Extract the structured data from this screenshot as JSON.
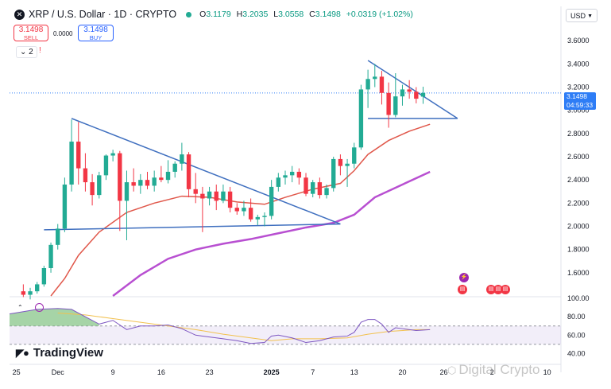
{
  "header": {
    "symbol_title": "XRP / U.S. Dollar · 1D · CRYPTO",
    "logo_glyph": "✕",
    "open_key": "O",
    "open": "3.1179",
    "high_key": "H",
    "high": "3.2035",
    "low_key": "L",
    "low": "3.0558",
    "close_key": "C",
    "close": "3.1498",
    "change": "+0.0319 (+1.02%)"
  },
  "trade": {
    "sell_price": "3.1498",
    "sell_label": "SELL",
    "spread": "0.0000",
    "buy_price": "3.1498",
    "buy_label": "BUY"
  },
  "indicators_toggle": "2",
  "currency_select": "USD",
  "last_price_tag": {
    "price": "3.1498",
    "countdown": "04:59:33"
  },
  "brand": "TradingView",
  "watermark": "Digital Crypto",
  "colors": {
    "up": "#22ab94",
    "down": "#f23645",
    "trendline": "#3f6fbf",
    "ma_fast": "#e0574a",
    "ma_slow": "#b84fd1",
    "rsi": "#7e57c2",
    "rsi_ma": "#f2c14e",
    "price_line": "#2e7df6",
    "volume_area": "#80c281"
  },
  "chart_data": {
    "type": "candlestick",
    "symbol": "XRP / U.S. Dollar",
    "interval": "1D",
    "ylim": [
      1.4,
      3.8
    ],
    "y_ticks": [
      "3.6000",
      "3.4000",
      "3.2000",
      "3.0000",
      "2.8000",
      "2.6000",
      "2.4000",
      "2.2000",
      "2.0000",
      "1.8000",
      "1.6000"
    ],
    "y_tick_values": [
      3.6,
      3.4,
      3.2,
      3.0,
      2.8,
      2.6,
      2.4,
      2.2,
      2.0,
      1.8,
      1.6
    ],
    "x_ticks": [
      {
        "label": "25",
        "day": -6,
        "bold": false
      },
      {
        "label": "Dec",
        "day": 0,
        "bold": false
      },
      {
        "label": "9",
        "day": 8,
        "bold": false
      },
      {
        "label": "16",
        "day": 15,
        "bold": false
      },
      {
        "label": "23",
        "day": 22,
        "bold": false
      },
      {
        "label": "2025",
        "day": 31,
        "bold": true
      },
      {
        "label": "7",
        "day": 37,
        "bold": false
      },
      {
        "label": "13",
        "day": 43,
        "bold": false
      },
      {
        "label": "20",
        "day": 50,
        "bold": false
      },
      {
        "label": "26",
        "day": 56,
        "bold": false
      },
      {
        "label": "2",
        "day": 63,
        "bold": false
      },
      {
        "label": "10",
        "day": 71,
        "bold": false
      }
    ],
    "x_day_range": [
      -7,
      73
    ],
    "candles": [
      {
        "day": -5,
        "o": 1.44,
        "h": 1.5,
        "l": 1.39,
        "c": 1.41
      },
      {
        "day": -4,
        "o": 1.41,
        "h": 1.47,
        "l": 1.37,
        "c": 1.44
      },
      {
        "day": -3,
        "o": 1.44,
        "h": 1.52,
        "l": 1.42,
        "c": 1.5
      },
      {
        "day": -2,
        "o": 1.5,
        "h": 1.66,
        "l": 1.48,
        "c": 1.64
      },
      {
        "day": -1,
        "o": 1.64,
        "h": 1.86,
        "l": 1.6,
        "c": 1.84
      },
      {
        "day": 0,
        "o": 1.84,
        "h": 2.02,
        "l": 1.8,
        "c": 1.98
      },
      {
        "day": 1,
        "o": 1.98,
        "h": 2.42,
        "l": 1.95,
        "c": 2.36
      },
      {
        "day": 2,
        "o": 2.36,
        "h": 2.92,
        "l": 2.3,
        "c": 2.73
      },
      {
        "day": 3,
        "o": 2.73,
        "h": 2.9,
        "l": 2.36,
        "c": 2.5
      },
      {
        "day": 4,
        "o": 2.5,
        "h": 2.63,
        "l": 2.3,
        "c": 2.38
      },
      {
        "day": 5,
        "o": 2.38,
        "h": 2.45,
        "l": 2.18,
        "c": 2.27
      },
      {
        "day": 6,
        "o": 2.27,
        "h": 2.47,
        "l": 2.24,
        "c": 2.44
      },
      {
        "day": 7,
        "o": 2.44,
        "h": 2.62,
        "l": 2.4,
        "c": 2.61
      },
      {
        "day": 8,
        "o": 2.61,
        "h": 2.66,
        "l": 2.56,
        "c": 2.63
      },
      {
        "day": 9,
        "o": 2.63,
        "h": 2.65,
        "l": 1.96,
        "c": 2.22
      },
      {
        "day": 10,
        "o": 2.22,
        "h": 2.48,
        "l": 1.88,
        "c": 2.38
      },
      {
        "day": 11,
        "o": 2.38,
        "h": 2.5,
        "l": 2.3,
        "c": 2.35
      },
      {
        "day": 12,
        "o": 2.35,
        "h": 2.45,
        "l": 2.28,
        "c": 2.4
      },
      {
        "day": 13,
        "o": 2.4,
        "h": 2.47,
        "l": 2.32,
        "c": 2.35
      },
      {
        "day": 14,
        "o": 2.35,
        "h": 2.48,
        "l": 2.3,
        "c": 2.42
      },
      {
        "day": 15,
        "o": 2.42,
        "h": 2.52,
        "l": 2.38,
        "c": 2.4
      },
      {
        "day": 16,
        "o": 2.4,
        "h": 2.57,
        "l": 2.37,
        "c": 2.47
      },
      {
        "day": 17,
        "o": 2.47,
        "h": 2.56,
        "l": 2.42,
        "c": 2.54
      },
      {
        "day": 18,
        "o": 2.54,
        "h": 2.72,
        "l": 2.48,
        "c": 2.62
      },
      {
        "day": 19,
        "o": 2.62,
        "h": 2.64,
        "l": 2.25,
        "c": 2.32
      },
      {
        "day": 20,
        "o": 2.32,
        "h": 2.46,
        "l": 2.2,
        "c": 2.28
      },
      {
        "day": 21,
        "o": 2.28,
        "h": 2.34,
        "l": 1.95,
        "c": 2.24
      },
      {
        "day": 22,
        "o": 2.24,
        "h": 2.34,
        "l": 2.18,
        "c": 2.3
      },
      {
        "day": 23,
        "o": 2.3,
        "h": 2.36,
        "l": 2.14,
        "c": 2.22
      },
      {
        "day": 24,
        "o": 2.22,
        "h": 2.36,
        "l": 2.2,
        "c": 2.3
      },
      {
        "day": 25,
        "o": 2.3,
        "h": 2.34,
        "l": 2.12,
        "c": 2.16
      },
      {
        "day": 26,
        "o": 2.16,
        "h": 2.2,
        "l": 2.1,
        "c": 2.13
      },
      {
        "day": 27,
        "o": 2.13,
        "h": 2.22,
        "l": 2.09,
        "c": 2.16
      },
      {
        "day": 28,
        "o": 2.16,
        "h": 2.24,
        "l": 2.04,
        "c": 2.06
      },
      {
        "day": 29,
        "o": 2.06,
        "h": 2.1,
        "l": 2.01,
        "c": 2.08
      },
      {
        "day": 30,
        "o": 2.08,
        "h": 2.12,
        "l": 2.0,
        "c": 2.09
      },
      {
        "day": 31,
        "o": 2.09,
        "h": 2.4,
        "l": 2.06,
        "c": 2.34
      },
      {
        "day": 32,
        "o": 2.34,
        "h": 2.46,
        "l": 2.3,
        "c": 2.42
      },
      {
        "day": 33,
        "o": 2.42,
        "h": 2.48,
        "l": 2.36,
        "c": 2.44
      },
      {
        "day": 34,
        "o": 2.44,
        "h": 2.52,
        "l": 2.38,
        "c": 2.47
      },
      {
        "day": 35,
        "o": 2.47,
        "h": 2.5,
        "l": 2.36,
        "c": 2.42
      },
      {
        "day": 36,
        "o": 2.42,
        "h": 2.46,
        "l": 2.26,
        "c": 2.28
      },
      {
        "day": 37,
        "o": 2.28,
        "h": 2.4,
        "l": 2.25,
        "c": 2.38
      },
      {
        "day": 38,
        "o": 2.38,
        "h": 2.42,
        "l": 2.24,
        "c": 2.27
      },
      {
        "day": 39,
        "o": 2.27,
        "h": 2.36,
        "l": 2.24,
        "c": 2.33
      },
      {
        "day": 40,
        "o": 2.33,
        "h": 2.6,
        "l": 2.3,
        "c": 2.58
      },
      {
        "day": 41,
        "o": 2.58,
        "h": 2.62,
        "l": 2.44,
        "c": 2.52
      },
      {
        "day": 42,
        "o": 2.52,
        "h": 2.58,
        "l": 2.34,
        "c": 2.54
      },
      {
        "day": 43,
        "o": 2.54,
        "h": 2.72,
        "l": 2.5,
        "c": 2.68
      },
      {
        "day": 44,
        "o": 2.68,
        "h": 3.22,
        "l": 2.66,
        "c": 3.18
      },
      {
        "day": 45,
        "o": 3.18,
        "h": 3.35,
        "l": 3.02,
        "c": 3.27
      },
      {
        "day": 46,
        "o": 3.27,
        "h": 3.4,
        "l": 3.2,
        "c": 3.29
      },
      {
        "day": 47,
        "o": 3.29,
        "h": 3.34,
        "l": 3.05,
        "c": 3.15
      },
      {
        "day": 48,
        "o": 3.15,
        "h": 3.24,
        "l": 2.85,
        "c": 2.96
      },
      {
        "day": 49,
        "o": 2.96,
        "h": 3.32,
        "l": 2.94,
        "c": 3.12
      },
      {
        "day": 50,
        "o": 3.12,
        "h": 3.22,
        "l": 3.04,
        "c": 3.18
      },
      {
        "day": 51,
        "o": 3.18,
        "h": 3.26,
        "l": 3.1,
        "c": 3.16
      },
      {
        "day": 52,
        "o": 3.16,
        "h": 3.2,
        "l": 3.06,
        "c": 3.1
      },
      {
        "day": 53,
        "o": 3.1179,
        "h": 3.2035,
        "l": 3.0558,
        "c": 3.1498
      }
    ],
    "ma_fast": [
      [
        -1,
        1.4
      ],
      [
        1,
        1.55
      ],
      [
        3,
        1.75
      ],
      [
        6,
        1.95
      ],
      [
        10,
        2.12
      ],
      [
        14,
        2.2
      ],
      [
        18,
        2.26
      ],
      [
        22,
        2.25
      ],
      [
        26,
        2.21
      ],
      [
        30,
        2.19
      ],
      [
        33,
        2.25
      ],
      [
        37,
        2.32
      ],
      [
        41,
        2.37
      ],
      [
        43,
        2.48
      ],
      [
        45,
        2.62
      ],
      [
        48,
        2.74
      ],
      [
        51,
        2.82
      ],
      [
        54,
        2.88
      ]
    ],
    "ma_slow": [
      [
        8,
        1.4
      ],
      [
        12,
        1.58
      ],
      [
        16,
        1.72
      ],
      [
        20,
        1.8
      ],
      [
        24,
        1.85
      ],
      [
        28,
        1.89
      ],
      [
        32,
        1.94
      ],
      [
        36,
        1.99
      ],
      [
        40,
        2.03
      ],
      [
        43,
        2.1
      ],
      [
        46,
        2.25
      ],
      [
        50,
        2.36
      ],
      [
        54,
        2.47
      ]
    ],
    "trendlines": [
      {
        "name": "descending-resistance",
        "from": [
          2,
          2.93
        ],
        "to": [
          41,
          2.02
        ]
      },
      {
        "name": "horizontal-support",
        "from": [
          -2,
          1.97
        ],
        "to": [
          41,
          2.02
        ]
      },
      {
        "name": "pennant-upper",
        "from": [
          45,
          3.43
        ],
        "to": [
          58,
          2.93
        ]
      },
      {
        "name": "pennant-lower",
        "from": [
          45,
          2.93
        ],
        "to": [
          58,
          2.93
        ]
      }
    ],
    "last_price": 3.1498,
    "rsi": {
      "ylim": [
        30,
        100
      ],
      "y_ticks": [
        "100.00",
        "80.00",
        "60.00",
        "40.00"
      ],
      "y_tick_values": [
        100,
        80,
        60,
        40
      ],
      "band": [
        50,
        70
      ],
      "rsi_values": [
        [
          -7,
          83
        ],
        [
          -3,
          88
        ],
        [
          0,
          89
        ],
        [
          2,
          88
        ],
        [
          4,
          80
        ],
        [
          6,
          72
        ],
        [
          8,
          76
        ],
        [
          10,
          66
        ],
        [
          12,
          70
        ],
        [
          14,
          70
        ],
        [
          16,
          71
        ],
        [
          18,
          67
        ],
        [
          20,
          60
        ],
        [
          22,
          58
        ],
        [
          24,
          56
        ],
        [
          26,
          54
        ],
        [
          28,
          51
        ],
        [
          30,
          52
        ],
        [
          31,
          59
        ],
        [
          32,
          60
        ],
        [
          34,
          57
        ],
        [
          36,
          52
        ],
        [
          38,
          54
        ],
        [
          40,
          58
        ],
        [
          42,
          59
        ],
        [
          43,
          63
        ],
        [
          44,
          74
        ],
        [
          45,
          77
        ],
        [
          46,
          77
        ],
        [
          47,
          72
        ],
        [
          48,
          63
        ],
        [
          49,
          68
        ],
        [
          50,
          67
        ],
        [
          52,
          65
        ],
        [
          54,
          66
        ]
      ],
      "rsi_ma_values": [
        [
          0,
          84
        ],
        [
          4,
          82
        ],
        [
          8,
          78
        ],
        [
          12,
          74
        ],
        [
          16,
          70
        ],
        [
          20,
          66
        ],
        [
          24,
          61
        ],
        [
          28,
          57
        ],
        [
          31,
          54
        ],
        [
          34,
          56
        ],
        [
          38,
          56
        ],
        [
          42,
          57
        ],
        [
          45,
          61
        ],
        [
          48,
          64
        ],
        [
          52,
          66
        ],
        [
          54,
          66
        ]
      ]
    }
  }
}
